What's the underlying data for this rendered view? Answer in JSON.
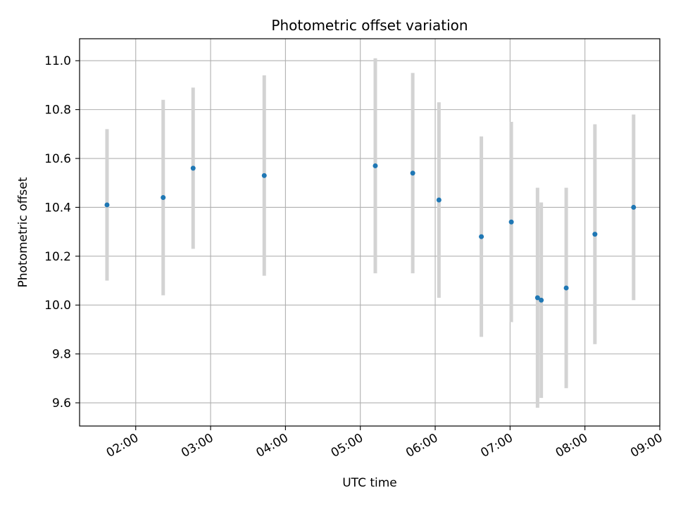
{
  "chart_data": {
    "type": "scatter",
    "title": "Photometric offset variation",
    "xlabel": "UTC time",
    "ylabel": "Photometric offset",
    "x_ticks": [
      "02:00",
      "03:00",
      "04:00",
      "05:00",
      "06:00",
      "07:00",
      "08:00",
      "09:00"
    ],
    "y_ticks": [
      "9.6",
      "9.8",
      "10.0",
      "10.2",
      "10.4",
      "10.6",
      "10.8",
      "11.0"
    ],
    "xlim": [
      "01:15",
      "09:00"
    ],
    "ylim": [
      9.505,
      11.09
    ],
    "grid": true,
    "marker_color": "#1f77b4",
    "errorbar_color": "#d3d3d3",
    "series": [
      {
        "points": [
          {
            "x": "01:37",
            "y": 10.41,
            "err": 0.31
          },
          {
            "x": "02:22",
            "y": 10.44,
            "err": 0.4
          },
          {
            "x": "02:46",
            "y": 10.56,
            "err": 0.33
          },
          {
            "x": "03:43",
            "y": 10.53,
            "err": 0.41
          },
          {
            "x": "05:12",
            "y": 10.57,
            "err": 0.44
          },
          {
            "x": "05:42",
            "y": 10.54,
            "err": 0.41
          },
          {
            "x": "06:03",
            "y": 10.43,
            "err": 0.4
          },
          {
            "x": "06:37",
            "y": 10.28,
            "err": 0.41
          },
          {
            "x": "07:01",
            "y": 10.34,
            "err": 0.41
          },
          {
            "x": "07:22",
            "y": 10.03,
            "err": 0.45
          },
          {
            "x": "07:25",
            "y": 10.02,
            "err": 0.4
          },
          {
            "x": "07:45",
            "y": 10.07,
            "err": 0.41
          },
          {
            "x": "08:08",
            "y": 10.29,
            "err": 0.45
          },
          {
            "x": "08:39",
            "y": 10.4,
            "err": 0.38
          }
        ]
      }
    ]
  }
}
